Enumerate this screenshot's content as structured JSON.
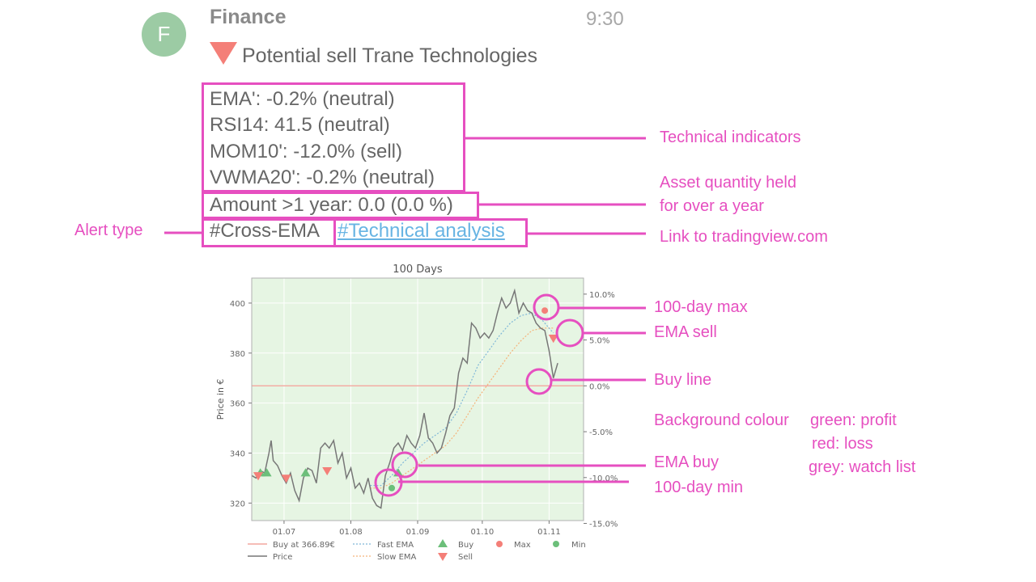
{
  "message": {
    "avatar_letter": "F",
    "sender": "Finance",
    "time": "9:30",
    "title": "Potential sell Trane Technologies",
    "indicators": [
      "EMA': -0.2% (neutral)",
      "RSI14: 41.5 (neutral)",
      "MOM10': -12.0% (sell)",
      "VWMA20': -0.2% (neutral)"
    ],
    "amount": "Amount >1 year: 0.0 (0.0 %)",
    "hashtag": "#Cross-EMA",
    "link": "#Technical analysis"
  },
  "annotations": {
    "technical_indicators": "Technical indicators",
    "asset_qty_1": "Asset quantity held",
    "asset_qty_2": "for over a year",
    "alert_type": "Alert type",
    "link_to": "Link to tradingview.com",
    "max": "100-day max",
    "ema_sell": "EMA sell",
    "buy_line": "Buy line",
    "bg_colour": "Background colour",
    "bg_green": "green: profit",
    "bg_red": "red: loss",
    "bg_grey": "grey: watch list",
    "ema_buy": "EMA buy",
    "min": "100-day min"
  },
  "colors": {
    "accent": "#e64fc0",
    "link": "#68b4e3",
    "sell": "#f47f78",
    "buy": "#6cbf7a",
    "plot_bg": "#e6f5e3"
  },
  "chart_data": {
    "type": "line",
    "title": "100 Days",
    "ylabel": "Price in €",
    "ylim": [
      313,
      410
    ],
    "y_ticks": [
      320,
      340,
      360,
      380,
      400
    ],
    "y2_ticks": [
      "10.0%",
      "5.0%",
      "0.0%",
      "-5.0%",
      "-10.0%",
      "-15.0%"
    ],
    "x_ticks": [
      "01.07",
      "01.08",
      "01.09",
      "01.10",
      "01.11"
    ],
    "x_tick_days": [
      15,
      46,
      77,
      107,
      138
    ],
    "xlim": [
      0,
      154
    ],
    "buy_price": 366.89,
    "legend": {
      "buy_line": "Buy at 366.89€",
      "price": "Price",
      "fast_ema": "Fast EMA",
      "slow_ema": "Slow EMA",
      "buy": "Buy",
      "sell": "Sell",
      "max": "Max",
      "min": "Min"
    },
    "price": [
      [
        0,
        331
      ],
      [
        2,
        330
      ],
      [
        4,
        333
      ],
      [
        6,
        332
      ],
      [
        8,
        340
      ],
      [
        9,
        345
      ],
      [
        10,
        337
      ],
      [
        12,
        335
      ],
      [
        14,
        331
      ],
      [
        16,
        328
      ],
      [
        18,
        332
      ],
      [
        20,
        325
      ],
      [
        22,
        321
      ],
      [
        24,
        330
      ],
      [
        26,
        334
      ],
      [
        28,
        333
      ],
      [
        30,
        328
      ],
      [
        32,
        342
      ],
      [
        34,
        344
      ],
      [
        36,
        342
      ],
      [
        38,
        345
      ],
      [
        40,
        336
      ],
      [
        42,
        340
      ],
      [
        44,
        330
      ],
      [
        46,
        334
      ],
      [
        48,
        326
      ],
      [
        50,
        328
      ],
      [
        52,
        324
      ],
      [
        54,
        330
      ],
      [
        56,
        322
      ],
      [
        58,
        319
      ],
      [
        60,
        318
      ],
      [
        62,
        331
      ],
      [
        64,
        336
      ],
      [
        66,
        342
      ],
      [
        68,
        344
      ],
      [
        70,
        341
      ],
      [
        72,
        347
      ],
      [
        74,
        344
      ],
      [
        76,
        342
      ],
      [
        78,
        347
      ],
      [
        80,
        356
      ],
      [
        82,
        346
      ],
      [
        84,
        344
      ],
      [
        86,
        340
      ],
      [
        88,
        342
      ],
      [
        90,
        348
      ],
      [
        92,
        355
      ],
      [
        94,
        358
      ],
      [
        96,
        372
      ],
      [
        98,
        378
      ],
      [
        100,
        376
      ],
      [
        102,
        392
      ],
      [
        104,
        390
      ],
      [
        106,
        386
      ],
      [
        108,
        388
      ],
      [
        110,
        386
      ],
      [
        112,
        389
      ],
      [
        114,
        396
      ],
      [
        116,
        402
      ],
      [
        118,
        398
      ],
      [
        120,
        400
      ],
      [
        122,
        405
      ],
      [
        124,
        396
      ],
      [
        126,
        400
      ],
      [
        128,
        397
      ],
      [
        130,
        396
      ],
      [
        132,
        392
      ],
      [
        134,
        390
      ],
      [
        136,
        389
      ],
      [
        138,
        381
      ],
      [
        140,
        370
      ],
      [
        142,
        376
      ]
    ],
    "fast_ema": [
      [
        55,
        327
      ],
      [
        60,
        327
      ],
      [
        65,
        331
      ],
      [
        70,
        336
      ],
      [
        75,
        340
      ],
      [
        80,
        344
      ],
      [
        85,
        347
      ],
      [
        90,
        350
      ],
      [
        95,
        356
      ],
      [
        100,
        365
      ],
      [
        105,
        375
      ],
      [
        110,
        381
      ],
      [
        115,
        387
      ],
      [
        120,
        392
      ],
      [
        125,
        395
      ],
      [
        130,
        396
      ],
      [
        135,
        393
      ],
      [
        140,
        388
      ]
    ],
    "slow_ema": [
      [
        55,
        326
      ],
      [
        60,
        326
      ],
      [
        65,
        328
      ],
      [
        70,
        331
      ],
      [
        75,
        334
      ],
      [
        80,
        337
      ],
      [
        85,
        340
      ],
      [
        90,
        343
      ],
      [
        95,
        348
      ],
      [
        100,
        355
      ],
      [
        105,
        362
      ],
      [
        110,
        368
      ],
      [
        115,
        374
      ],
      [
        120,
        380
      ],
      [
        125,
        385
      ],
      [
        130,
        389
      ],
      [
        135,
        390
      ],
      [
        140,
        390
      ]
    ],
    "buy_markers": [
      [
        4,
        332
      ],
      [
        7,
        332
      ],
      [
        25,
        332
      ],
      [
        68,
        332
      ]
    ],
    "sell_markers": [
      [
        3,
        331
      ],
      [
        16,
        330
      ],
      [
        35,
        333
      ],
      [
        140,
        386
      ]
    ],
    "max_point": [
      136,
      397
    ],
    "min_point": [
      65,
      326
    ]
  }
}
